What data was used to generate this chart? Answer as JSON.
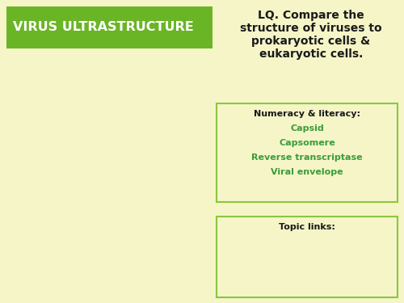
{
  "bg_color": "#f5f5c8",
  "header_bg": "#6ab526",
  "header_text": "VIRUS ULTRASTRUCTURE",
  "header_text_color": "#ffffff",
  "lq_text_line1": "LQ. Compare the",
  "lq_text_line2": "structure of viruses to",
  "lq_text_line3": "prokaryotic cells &",
  "lq_text_line4": "eukaryotic cells.",
  "lq_text_color": "#1a1a1a",
  "numeracy_title": "Numeracy & literacy:",
  "numeracy_title_color": "#1a1a1a",
  "numeracy_items": [
    "Capsid",
    "Capsomere",
    "Reverse transcriptase",
    "Viral envelope"
  ],
  "numeracy_items_color": "#3a9c3a",
  "numeracy_box_color": "#8dc63f",
  "topic_title": "Topic links:",
  "topic_title_color": "#1a1a1a",
  "topic_box_color": "#8dc63f",
  "green_text_color": "#3a9c3a"
}
